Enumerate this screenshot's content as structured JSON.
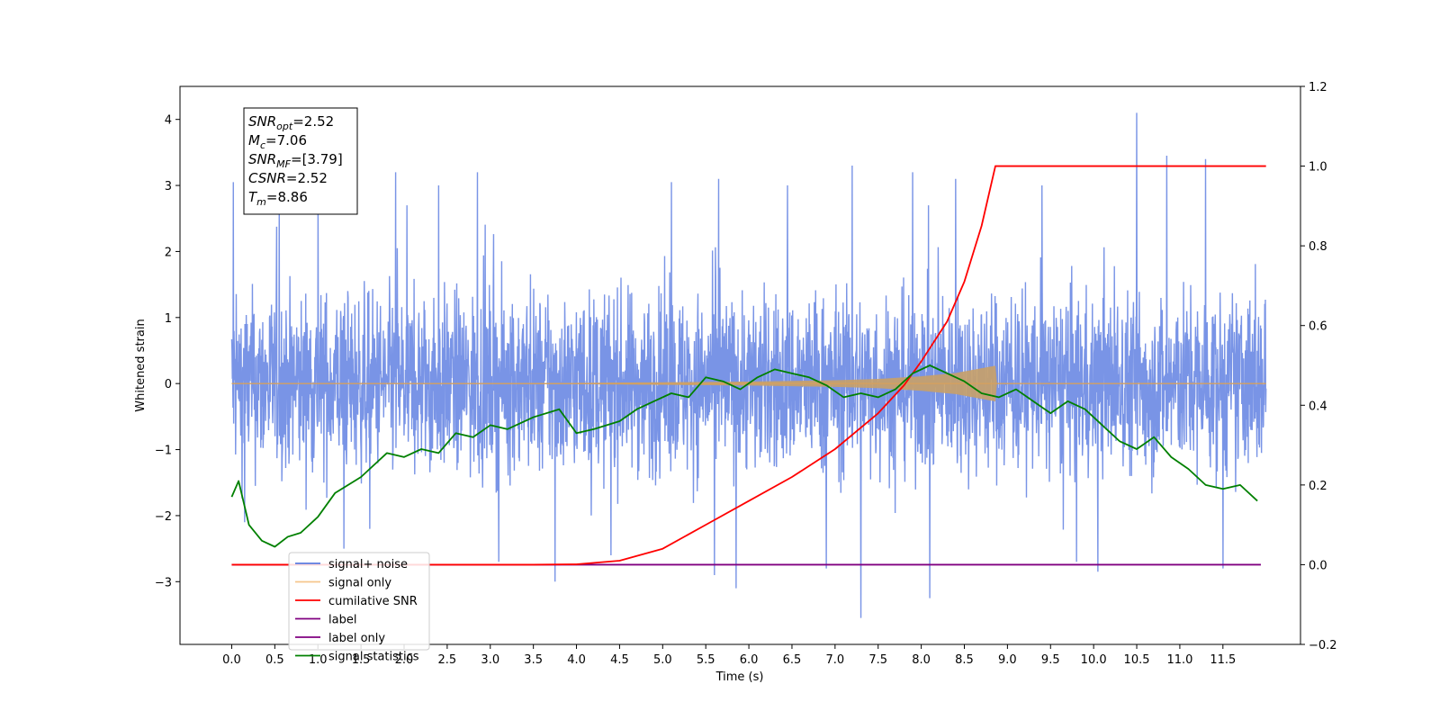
{
  "chart_data": {
    "type": "line",
    "title": "",
    "xlabel": "Time (s)",
    "ylabel": "Whitened strain",
    "xlim": [
      -0.6,
      12.4
    ],
    "ylim": [
      -3.95,
      4.5
    ],
    "y2lim": [
      -0.2,
      1.2
    ],
    "grid": false,
    "legend_position": "lower-left",
    "x_ticks": [
      "0.0",
      "0.5",
      "1.0",
      "1.5",
      "2.0",
      "2.5",
      "3.0",
      "3.5",
      "4.0",
      "4.5",
      "5.0",
      "5.5",
      "6.0",
      "6.5",
      "7.0",
      "7.5",
      "8.0",
      "8.5",
      "9.0",
      "9.5",
      "10.0",
      "10.5",
      "11.0",
      "11.5"
    ],
    "y_ticks": [
      "−3",
      "−2",
      "−1",
      "0",
      "1",
      "2",
      "3",
      "4"
    ],
    "y2_ticks": [
      "−0.2",
      "0.0",
      "0.2",
      "0.4",
      "0.6",
      "0.8",
      "1.0",
      "1.2"
    ],
    "series": [
      {
        "name": "signal+ noise",
        "axis": "left",
        "color": "#5c7de0",
        "x_range": [
          0.0,
          12.0
        ],
        "typical_amplitude": 0.95,
        "peaks": [
          [
            0.02,
            3.05
          ],
          [
            0.15,
            -2.1
          ],
          [
            0.55,
            2.7
          ],
          [
            1.0,
            2.8
          ],
          [
            1.3,
            -2.5
          ],
          [
            1.6,
            -2.2
          ],
          [
            1.9,
            3.2
          ],
          [
            2.4,
            3.0
          ],
          [
            2.85,
            3.2
          ],
          [
            3.1,
            -2.7
          ],
          [
            3.75,
            -3.0
          ],
          [
            4.4,
            -2.6
          ],
          [
            5.1,
            3.05
          ],
          [
            5.6,
            -2.9
          ],
          [
            5.65,
            3.1
          ],
          [
            5.85,
            -3.1
          ],
          [
            6.45,
            3.0
          ],
          [
            6.9,
            -2.8
          ],
          [
            7.2,
            3.3
          ],
          [
            7.3,
            -3.55
          ],
          [
            7.9,
            3.2
          ],
          [
            8.1,
            -3.25
          ],
          [
            8.4,
            3.1
          ],
          [
            9.4,
            3.0
          ],
          [
            9.8,
            -2.7
          ],
          [
            10.05,
            -2.85
          ],
          [
            10.5,
            4.1
          ],
          [
            10.85,
            3.45
          ],
          [
            11.3,
            3.4
          ],
          [
            11.5,
            -2.8
          ]
        ]
      },
      {
        "name": "signal only",
        "axis": "left",
        "color": "#f0a040",
        "x": [
          0.0,
          4.0,
          6.0,
          7.0,
          7.5,
          8.0,
          8.4,
          8.86,
          8.87,
          12.0
        ],
        "envelope": [
          0.0,
          0.01,
          0.03,
          0.05,
          0.07,
          0.11,
          0.16,
          0.27,
          0.0,
          0.0
        ]
      },
      {
        "name": "cumilative SNR",
        "axis": "right",
        "color": "#ff0000",
        "x": [
          0.0,
          3.5,
          4.0,
          4.5,
          5.0,
          5.5,
          6.0,
          6.5,
          7.0,
          7.5,
          7.8,
          8.0,
          8.3,
          8.5,
          8.7,
          8.86,
          12.0
        ],
        "values": [
          0.0,
          0.0,
          0.001,
          0.01,
          0.04,
          0.1,
          0.16,
          0.22,
          0.29,
          0.38,
          0.45,
          0.51,
          0.61,
          0.71,
          0.85,
          1.0,
          1.0
        ]
      },
      {
        "name": "label",
        "axis": "right",
        "color": "#800080",
        "x": [
          0.0,
          11.94
        ],
        "values": [
          0.0,
          0.0
        ]
      },
      {
        "name": "label only",
        "axis": "right",
        "color": "#800080",
        "hidden": true
      },
      {
        "name": "signal statistics",
        "axis": "right",
        "color": "#008000",
        "x": [
          0.0,
          0.08,
          0.2,
          0.35,
          0.5,
          0.65,
          0.8,
          1.0,
          1.2,
          1.5,
          1.8,
          2.0,
          2.2,
          2.4,
          2.6,
          2.8,
          3.0,
          3.2,
          3.5,
          3.8,
          4.0,
          4.2,
          4.5,
          4.7,
          4.9,
          5.1,
          5.3,
          5.5,
          5.7,
          5.9,
          6.1,
          6.3,
          6.5,
          6.7,
          6.9,
          7.1,
          7.3,
          7.5,
          7.7,
          7.9,
          8.1,
          8.3,
          8.5,
          8.7,
          8.9,
          9.1,
          9.3,
          9.5,
          9.7,
          9.9,
          10.1,
          10.3,
          10.5,
          10.7,
          10.9,
          11.1,
          11.3,
          11.5,
          11.7,
          11.9
        ],
        "values": [
          0.17,
          0.21,
          0.1,
          0.06,
          0.045,
          0.07,
          0.08,
          0.12,
          0.18,
          0.22,
          0.28,
          0.27,
          0.29,
          0.28,
          0.33,
          0.32,
          0.35,
          0.34,
          0.37,
          0.39,
          0.33,
          0.34,
          0.36,
          0.39,
          0.41,
          0.43,
          0.42,
          0.47,
          0.46,
          0.44,
          0.47,
          0.49,
          0.48,
          0.47,
          0.45,
          0.42,
          0.43,
          0.42,
          0.44,
          0.48,
          0.5,
          0.48,
          0.46,
          0.43,
          0.42,
          0.44,
          0.41,
          0.38,
          0.41,
          0.39,
          0.35,
          0.31,
          0.29,
          0.32,
          0.27,
          0.24,
          0.2,
          0.19,
          0.2,
          0.16
        ]
      }
    ],
    "annotation": {
      "lines": [
        {
          "main": "SNR",
          "sub": "opt",
          "value": "=2.52"
        },
        {
          "main": "M",
          "sub": "c",
          "value": "=7.06"
        },
        {
          "main": "SNR",
          "sub": "MF",
          "value": "=[3.79]"
        },
        {
          "main": "CSNR",
          "sub": "",
          "value": "=2.52"
        },
        {
          "main": "T",
          "sub": "m",
          "value": "=8.86"
        }
      ]
    }
  }
}
